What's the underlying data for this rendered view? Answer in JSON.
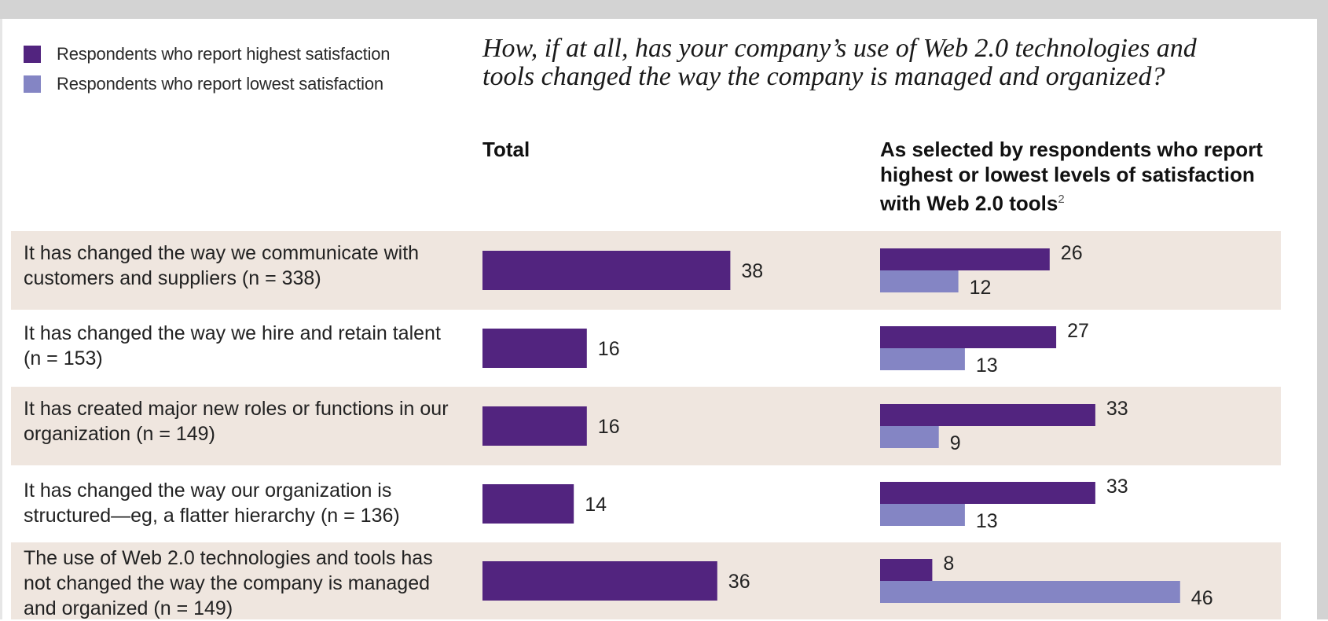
{
  "legend": [
    {
      "label": "Respondents who report highest satisfaction",
      "color": "#52247f"
    },
    {
      "label": "Respondents who report lowest satisfaction",
      "color": "#8485c4"
    }
  ],
  "question": "How, if at all, has your company’s use of Web 2.0 technologies and tools changed the way the company is managed and organized?",
  "col_total": "Total",
  "col_satisfaction": "As selected by respondents who report highest or lowest levels of satisfaction with Web 2.0 tools",
  "col_satisfaction_note": "2",
  "row_band_color": "#efe6df",
  "chart_data": {
    "type": "bar",
    "categories": [
      "It has changed the way we communicate with customers and suppliers (n = 338)",
      "It has changed the way we hire and retain talent (n = 153)",
      "It has created major new roles or functions in our organization (n = 149)",
      "It has changed the way our organization is structured—eg, a flatter hierarchy (n = 136)",
      "The use of Web 2.0 technologies and tools has not changed the way the company is managed and organized (n = 149)"
    ],
    "total": [
      38,
      16,
      16,
      14,
      36
    ],
    "series": [
      {
        "name": "Respondents who report highest satisfaction",
        "values": [
          26,
          27,
          33,
          33,
          8
        ],
        "color": "#52247f"
      },
      {
        "name": "Respondents who report lowest satisfaction",
        "values": [
          12,
          13,
          9,
          13,
          46
        ],
        "color": "#8485c4"
      }
    ],
    "total_color": "#52247f"
  }
}
